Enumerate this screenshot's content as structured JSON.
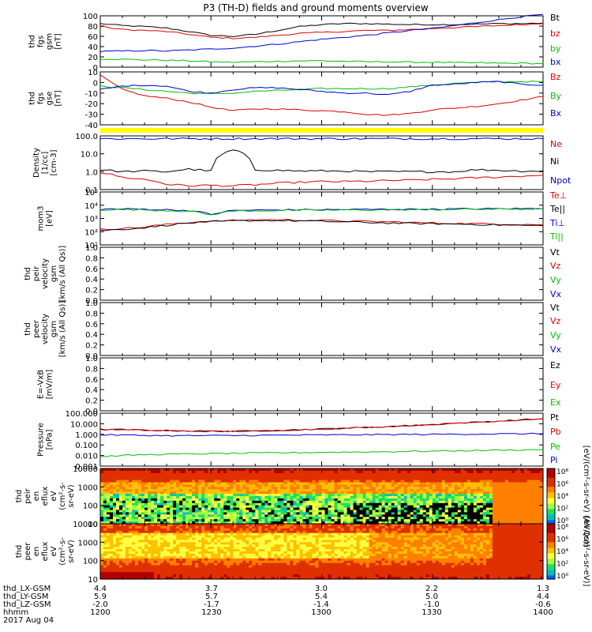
{
  "title": "P3 (TH-D) fields and ground moments overview",
  "colors": {
    "black": "#000000",
    "red": "#e00000",
    "green": "#00c000",
    "blue": "#0000d0",
    "yellow": "#ffff00"
  },
  "chart_data": [
    {
      "type": "line",
      "ylabel": [
        "thd",
        "fgs",
        "gsm",
        "[nT]"
      ],
      "yticks": [
        "100",
        "80",
        "60",
        "40",
        "20",
        "0"
      ],
      "ylim": [
        -5,
        100
      ],
      "x": [
        1200,
        1210,
        1220,
        1230,
        1240,
        1250,
        1260,
        1270,
        1280,
        1290,
        1300,
        1310,
        1320,
        1330,
        1340,
        1350,
        1360,
        1370,
        1380,
        1390,
        1400
      ],
      "series": [
        {
          "name": "Bt",
          "color": "#000000",
          "values": [
            84,
            80,
            78,
            75,
            68,
            60,
            58,
            62,
            70,
            78,
            82,
            84,
            84,
            83,
            82,
            82,
            82,
            83,
            84,
            84,
            85
          ]
        },
        {
          "name": "bz",
          "color": "#e00000",
          "values": [
            78,
            72,
            70,
            68,
            62,
            56,
            54,
            56,
            60,
            64,
            66,
            68,
            70,
            70,
            72,
            74,
            76,
            78,
            80,
            82,
            84
          ]
        },
        {
          "name": "by",
          "color": "#00c000",
          "values": [
            12,
            11,
            10,
            9,
            8,
            6,
            5,
            6,
            7,
            8,
            8,
            7,
            6,
            6,
            5,
            5,
            4,
            4,
            3,
            3,
            2
          ]
        },
        {
          "name": "bx",
          "color": "#0000d0",
          "values": [
            27,
            28,
            29,
            28,
            30,
            32,
            34,
            38,
            42,
            47,
            52,
            56,
            60,
            65,
            70,
            74,
            80,
            86,
            92,
            98,
            103
          ]
        }
      ]
    },
    {
      "type": "line",
      "ylabel": [
        "thd",
        "fgs",
        "gse",
        "[nT]"
      ],
      "yticks": [
        "10",
        "0",
        "-10",
        "-20",
        "-30",
        "-40"
      ],
      "ylim": [
        -48,
        12
      ],
      "x": [
        1200,
        1210,
        1220,
        1230,
        1240,
        1250,
        1260,
        1270,
        1280,
        1290,
        1300,
        1310,
        1320,
        1330,
        1340,
        1350,
        1360,
        1370,
        1380,
        1390,
        1400
      ],
      "series": [
        {
          "name": "Bz",
          "color": "#e00000",
          "values": [
            8,
            -8,
            -15,
            -18,
            -22,
            -28,
            -32,
            -30,
            -30,
            -31,
            -32,
            -33,
            -36,
            -37,
            -35,
            -31,
            -29,
            -27,
            -24,
            -20,
            -16
          ]
        },
        {
          "name": "By",
          "color": "#00c000",
          "values": [
            -4,
            -6,
            -8,
            -10,
            -12,
            -13,
            -12,
            -10,
            -9,
            -8,
            -7,
            -7,
            -7,
            -7,
            -5,
            -3,
            -1,
            0,
            1,
            1,
            1
          ]
        },
        {
          "name": "Bx",
          "color": "#0000d0",
          "values": [
            -8,
            -4,
            -3,
            -4,
            -10,
            -12,
            -8,
            -6,
            -6,
            -8,
            -10,
            -12,
            -12,
            -14,
            -10,
            -3,
            -2,
            0,
            1,
            -2,
            -3
          ]
        }
      ]
    },
    {
      "type": "line",
      "yscale": "log",
      "ylabel": [
        "Density",
        "[1/cc]",
        "[cm-3]"
      ],
      "yticks": [
        "100.0",
        "10.0",
        "1.0",
        "0.1"
      ],
      "ylim": [
        0.07,
        150
      ],
      "x": [
        1200,
        1210,
        1220,
        1230,
        1240,
        1250,
        1260,
        1270,
        1280,
        1290,
        1300,
        1310,
        1320,
        1330,
        1340,
        1350,
        1360,
        1370,
        1380,
        1390,
        1400
      ],
      "series": [
        {
          "name": "Ne",
          "color": "#e00000",
          "values": [
            0.8,
            0.4,
            0.3,
            0.15,
            0.12,
            0.13,
            0.12,
            0.14,
            0.17,
            0.2,
            0.22,
            0.22,
            0.23,
            0.25,
            0.27,
            0.3,
            0.33,
            0.38,
            0.42,
            0.48,
            0.55
          ]
        },
        {
          "name": "Ni",
          "color": "#000000",
          "values": [
            1.2,
            0.9,
            1.0,
            0.9,
            1.3,
            1.0,
            20,
            1.2,
            1.1,
            1.0,
            1.0,
            1.0,
            0.9,
            0.9,
            0.9,
            0.9,
            0.9,
            1.2,
            1.1,
            1.0,
            1.0
          ]
        },
        {
          "name": "Npot",
          "color": "#0000d0",
          "values": [
            100,
            100,
            100,
            100,
            100,
            100,
            100,
            100,
            100,
            100,
            100,
            100,
            100,
            100,
            100,
            100,
            100,
            100,
            100,
            100,
            100
          ]
        }
      ]
    },
    {
      "type": "line",
      "yscale": "log",
      "ylabel": [
        "mom3",
        "[eV]"
      ],
      "yticks": [
        "10⁵",
        "10⁴",
        "10³",
        "10²",
        "10¹"
      ],
      "ylim": [
        10,
        100000
      ],
      "x": [
        1200,
        1210,
        1220,
        1230,
        1240,
        1250,
        1260,
        1270,
        1280,
        1290,
        1300,
        1310,
        1320,
        1330,
        1340,
        1350,
        1360,
        1370,
        1380,
        1390,
        1400
      ],
      "series": [
        {
          "name": "Te⊥",
          "color": "#e00000",
          "values": [
            150,
            180,
            220,
            350,
            500,
            600,
            700,
            800,
            800,
            750,
            700,
            650,
            600,
            550,
            500,
            450,
            420,
            400,
            380,
            360,
            340
          ]
        },
        {
          "name": "Te||",
          "color": "#000000",
          "values": [
            120,
            150,
            200,
            300,
            450,
            550,
            650,
            700,
            700,
            650,
            600,
            550,
            500,
            450,
            420,
            400,
            380,
            350,
            320,
            300,
            280
          ]
        },
        {
          "name": "Ti⊥",
          "color": "#0000d0",
          "values": [
            5000,
            5200,
            5000,
            4500,
            4000,
            2000,
            4000,
            4200,
            4400,
            4500,
            4600,
            4700,
            4800,
            4900,
            5000,
            5000,
            5200,
            5300,
            5400,
            5500,
            5600
          ]
        },
        {
          "name": "Ti||",
          "color": "#00c000",
          "values": [
            4500,
            4600,
            4400,
            4000,
            3500,
            1800,
            3600,
            3800,
            4000,
            4100,
            4200,
            4300,
            4400,
            4500,
            4600,
            4600,
            4800,
            4900,
            5000,
            5100,
            5200
          ]
        }
      ]
    },
    {
      "type": "line",
      "ylabel": [
        "thd",
        "peir",
        "velocity",
        "gsm",
        "[km/s (All Qs)]"
      ],
      "yticks": [
        "1.0",
        "0.8",
        "0.6",
        "0.4",
        "0.2",
        "0.0"
      ],
      "ylim": [
        0,
        1
      ],
      "series": [
        {
          "name": "Vt"
        },
        {
          "name": "Vz"
        },
        {
          "name": "Vy"
        },
        {
          "name": "Vx"
        }
      ]
    },
    {
      "type": "line",
      "ylabel": [
        "thd",
        "peer",
        "velocity",
        "gsm",
        "[km/s (All Qs)]"
      ],
      "yticks": [
        "1.0",
        "0.8",
        "0.6",
        "0.4",
        "0.2",
        "0.0"
      ],
      "ylim": [
        0,
        1
      ],
      "series": [
        {
          "name": "Vt"
        },
        {
          "name": "Vz"
        },
        {
          "name": "Vy"
        },
        {
          "name": "Vx"
        }
      ]
    },
    {
      "type": "line",
      "ylabel": [
        "E=-VxB",
        "[mV/m]"
      ],
      "yticks": [
        "1.0",
        "0.8",
        "0.6",
        "0.4",
        "0.2",
        "0.0"
      ],
      "ylim": [
        0,
        1
      ],
      "series": [
        {
          "name": "Ez"
        },
        {
          "name": "Ey"
        },
        {
          "name": "Ex"
        }
      ]
    },
    {
      "type": "line",
      "yscale": "log",
      "ylabel": [
        "Pressure",
        "[nPa]"
      ],
      "yticks": [
        "100.000",
        "10.000",
        "1.000",
        "0.100",
        "0.010",
        "0.001"
      ],
      "ylim": [
        0.001,
        100
      ],
      "x": [
        1200,
        1210,
        1220,
        1230,
        1240,
        1250,
        1260,
        1270,
        1280,
        1290,
        1300,
        1310,
        1320,
        1330,
        1340,
        1350,
        1360,
        1370,
        1380,
        1390,
        1400
      ],
      "series": [
        {
          "name": "Pt",
          "color": "#000000",
          "values": [
            3.0,
            2.8,
            2.5,
            2.3,
            2.1,
            2.0,
            2.0,
            2.1,
            2.4,
            2.8,
            3.2,
            3.8,
            4.5,
            5.5,
            6.8,
            8.5,
            11,
            14,
            18,
            23,
            30
          ]
        },
        {
          "name": "Pb",
          "color": "#e00000",
          "values": [
            2.8,
            2.6,
            2.4,
            2.2,
            2.0,
            1.9,
            1.9,
            2.0,
            2.3,
            2.7,
            3.1,
            3.7,
            4.4,
            5.4,
            6.7,
            8.4,
            10.8,
            13.8,
            17.8,
            22.5,
            29
          ]
        },
        {
          "name": "Pe",
          "color": "#00c000",
          "values": [
            0.008,
            0.01,
            0.012,
            0.013,
            0.014,
            0.015,
            0.016,
            0.017,
            0.018,
            0.019,
            0.02,
            0.021,
            0.022,
            0.023,
            0.025,
            0.026,
            0.028,
            0.03,
            0.032,
            0.034,
            0.036
          ]
        },
        {
          "name": "Pi",
          "color": "#0000d0",
          "values": [
            0.9,
            0.85,
            0.8,
            0.75,
            0.75,
            0.76,
            0.78,
            0.8,
            0.82,
            0.85,
            0.88,
            0.9,
            0.92,
            0.95,
            0.98,
            1.0,
            1.05,
            1.08,
            1.1,
            1.12,
            1.15
          ]
        }
      ]
    },
    {
      "type": "heatmap",
      "ylabel": [
        "thd",
        "peir",
        "en",
        "eflux",
        "eV",
        "(cm²-s-",
        "sr-eV)"
      ],
      "yticks": [
        "10000",
        "1000",
        "100",
        "10"
      ],
      "colorbar": {
        "ticks": [
          "10⁸",
          "10⁶",
          "10⁴",
          "10²",
          "10⁰"
        ],
        "label": "[eV/(cm²-s-sr-eV) (All Qs)]"
      }
    },
    {
      "type": "heatmap",
      "ylabel": [
        "thd",
        "peer",
        "en",
        "eflux",
        "eV",
        "(cm²-s-",
        "sr-eV)"
      ],
      "yticks": [
        "10000",
        "1000",
        "100",
        "10"
      ],
      "colorbar": {
        "ticks": [
          "10⁸",
          "10⁶",
          "10⁴",
          "10²",
          "10⁰"
        ],
        "label": "[eV/(cm²-s-sr-eV)]"
      }
    }
  ],
  "xaxis": {
    "rows": [
      {
        "label": "thd_LX-GSM",
        "ticks": [
          "4.4",
          "3.7",
          "3.0",
          "2.2",
          "1.3"
        ]
      },
      {
        "label": "thd_LY-GSM",
        "ticks": [
          "5.9",
          "5.7",
          "5.4",
          "5.0",
          "4.4"
        ]
      },
      {
        "label": "thd_LZ-GSM",
        "ticks": [
          "-2.0",
          "-1.7",
          "-1.4",
          "-1.0",
          "-0.6"
        ]
      },
      {
        "label": "hhmm",
        "ticks": [
          "1200",
          "1230",
          "1300",
          "1330",
          "1400"
        ]
      }
    ],
    "date": "2017 Aug 04"
  }
}
